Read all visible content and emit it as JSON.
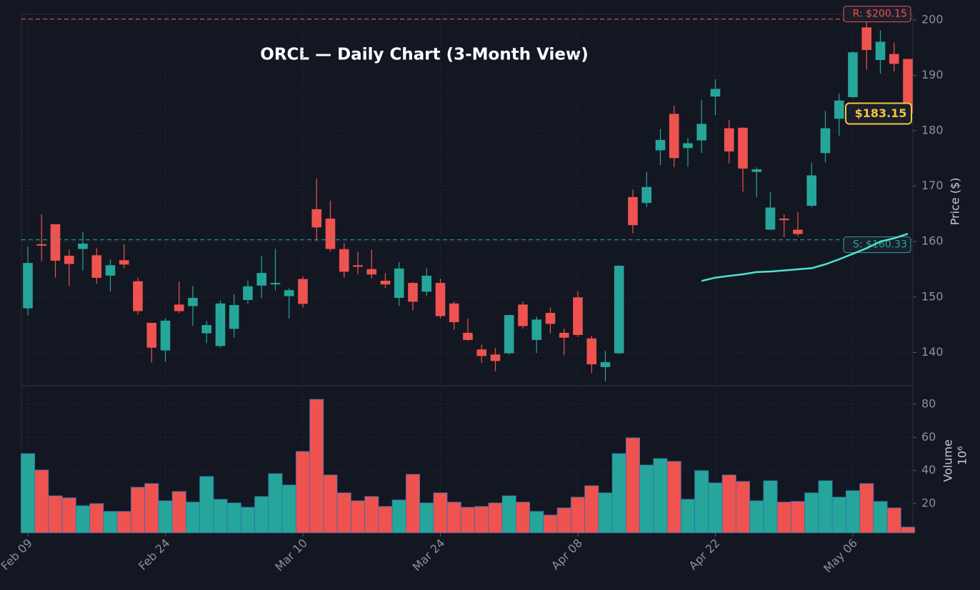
{
  "chart_data": {
    "type": "candlestick",
    "title": "ORCL — Daily Chart (3-Month View)",
    "ylabel": "Price ($)",
    "volume_label": "Volume",
    "volume_exponent": "10⁶",
    "categories": [
      "Feb 09",
      null,
      null,
      null,
      null,
      null,
      null,
      null,
      null,
      null,
      "Feb 24",
      null,
      null,
      null,
      null,
      null,
      null,
      null,
      null,
      null,
      "Mar 10",
      null,
      null,
      null,
      null,
      null,
      null,
      null,
      null,
      null,
      "Mar 24",
      null,
      null,
      null,
      null,
      null,
      null,
      null,
      null,
      null,
      "Apr 08",
      null,
      null,
      null,
      null,
      null,
      null,
      null,
      null,
      null,
      "Apr 22",
      null,
      null,
      null,
      null,
      null,
      null,
      null,
      null,
      null,
      "May 06",
      null,
      null,
      null,
      null
    ],
    "open": [
      148.0,
      159.5,
      163.1,
      157.4,
      158.7,
      157.5,
      153.9,
      156.6,
      152.8,
      145.3,
      140.4,
      148.6,
      148.4,
      143.5,
      141.2,
      144.3,
      149.5,
      152.1,
      152.4,
      150.2,
      153.2,
      165.8,
      164.1,
      158.6,
      155.7,
      155.0,
      152.9,
      149.9,
      152.5,
      151.0,
      152.5,
      148.8,
      143.5,
      140.5,
      139.6,
      139.9,
      148.6,
      142.3,
      147.1,
      143.5,
      149.9,
      142.5,
      137.4,
      139.9,
      168.0,
      167.0,
      176.5,
      183.0,
      176.9,
      178.3,
      186.2,
      180.4,
      180.5,
      172.6,
      162.2,
      164.1,
      162.1,
      166.5,
      176.0,
      182.2,
      186.1,
      198.6,
      192.8,
      193.8,
      192.9
    ],
    "high": [
      159.1,
      164.9,
      163.1,
      158.5,
      161.8,
      158.8,
      156.8,
      159.5,
      153.5,
      145.3,
      146.2,
      152.8,
      152.0,
      145.7,
      149.4,
      150.5,
      153.0,
      157.4,
      158.7,
      151.6,
      153.7,
      171.4,
      167.4,
      159.7,
      158.2,
      158.5,
      154.3,
      156.3,
      152.7,
      155.2,
      153.3,
      149.2,
      146.1,
      141.4,
      140.8,
      146.8,
      149.2,
      146.5,
      148.1,
      144.3,
      151.0,
      143.0,
      140.3,
      155.7,
      169.4,
      172.6,
      180.3,
      184.5,
      178.7,
      185.5,
      189.3,
      181.9,
      180.6,
      173.4,
      168.9,
      164.9,
      165.3,
      174.3,
      183.6,
      186.7,
      194.3,
      200.0,
      198.1,
      195.9,
      192.9
    ],
    "low": [
      146.7,
      156.5,
      153.5,
      152.0,
      154.8,
      152.4,
      151.0,
      155.2,
      146.8,
      138.2,
      138.3,
      147.1,
      144.8,
      141.7,
      140.9,
      142.7,
      148.8,
      149.8,
      151.2,
      146.1,
      148.1,
      160.1,
      158.2,
      153.5,
      154.1,
      153.3,
      151.6,
      148.4,
      147.6,
      150.2,
      146.1,
      144.1,
      142.1,
      138.1,
      136.6,
      139.6,
      144.3,
      139.9,
      143.4,
      139.5,
      142.8,
      136.3,
      134.8,
      139.7,
      161.5,
      166.2,
      173.8,
      173.4,
      173.5,
      176.0,
      182.8,
      174.1,
      169.0,
      168.0,
      162.1,
      160.8,
      161.0,
      166.2,
      174.3,
      179.1,
      185.9,
      191.0,
      190.3,
      190.7,
      183.0
    ],
    "close": [
      156.1,
      159.3,
      156.6,
      156.0,
      159.6,
      153.5,
      155.7,
      155.9,
      147.5,
      140.9,
      145.7,
      147.5,
      149.8,
      144.9,
      148.8,
      148.5,
      151.9,
      154.3,
      152.5,
      151.2,
      148.8,
      162.6,
      158.7,
      154.6,
      155.5,
      154.1,
      152.3,
      155.1,
      149.2,
      153.8,
      146.6,
      145.5,
      142.3,
      139.4,
      138.5,
      146.7,
      144.8,
      145.9,
      145.2,
      142.7,
      143.2,
      137.9,
      138.2,
      155.6,
      163.0,
      169.8,
      178.3,
      175.1,
      177.7,
      181.2,
      187.5,
      176.3,
      173.2,
      173.0,
      166.1,
      163.9,
      161.4,
      171.9,
      180.4,
      185.4,
      194.1,
      194.6,
      196.0,
      192.1,
      183.15
    ],
    "volume": [
      50.2,
      40.3,
      24.7,
      23.5,
      18.7,
      20.0,
      15.3,
      15.3,
      29.9,
      32.1,
      21.7,
      27.3,
      20.9,
      36.4,
      22.6,
      20.4,
      17.8,
      24.3,
      38.1,
      31.2,
      51.5,
      83.0,
      37.3,
      26.5,
      21.7,
      24.3,
      18.3,
      22.2,
      37.7,
      20.4,
      26.5,
      20.9,
      17.8,
      18.3,
      20.4,
      24.7,
      20.9,
      15.3,
      13.1,
      17.4,
      23.9,
      30.8,
      26.5,
      50.2,
      59.7,
      43.3,
      47.2,
      45.5,
      22.6,
      39.9,
      32.5,
      37.3,
      33.4,
      21.7,
      33.8,
      20.9,
      21.3,
      26.5,
      33.8,
      23.9,
      27.8,
      32.1,
      21.3,
      17.4,
      5.8
    ],
    "up_color": "#26a69a",
    "down_color": "#ef5350",
    "ma": {
      "color": "#4fe3d3",
      "values": [
        null,
        null,
        null,
        null,
        null,
        null,
        null,
        null,
        null,
        null,
        null,
        null,
        null,
        null,
        null,
        null,
        null,
        null,
        null,
        null,
        null,
        null,
        null,
        null,
        null,
        null,
        null,
        null,
        null,
        null,
        null,
        null,
        null,
        null,
        null,
        null,
        null,
        null,
        null,
        null,
        null,
        null,
        null,
        null,
        null,
        null,
        null,
        null,
        null,
        152.9,
        153.5,
        153.8,
        154.1,
        154.5,
        154.6,
        154.8,
        155.0,
        155.2,
        155.9,
        156.8,
        157.8,
        158.8,
        160.0,
        160.6,
        161.4
      ]
    },
    "resistance": {
      "value": 200.15,
      "label": "R: $200.15",
      "color": "#ef5350"
    },
    "support": {
      "value": 160.33,
      "label": "S: $160.33",
      "color": "#26a69a"
    },
    "last_price": {
      "value": 183.15,
      "label": "$183.15",
      "color": "#f5c542"
    },
    "ylim": [
      134,
      201
    ],
    "yticks": [
      140,
      150,
      160,
      170,
      180,
      190,
      200
    ],
    "volume_ylim": [
      2.3,
      91.2
    ],
    "volume_yticks": [
      20,
      40,
      60,
      80
    ],
    "grid": true
  }
}
